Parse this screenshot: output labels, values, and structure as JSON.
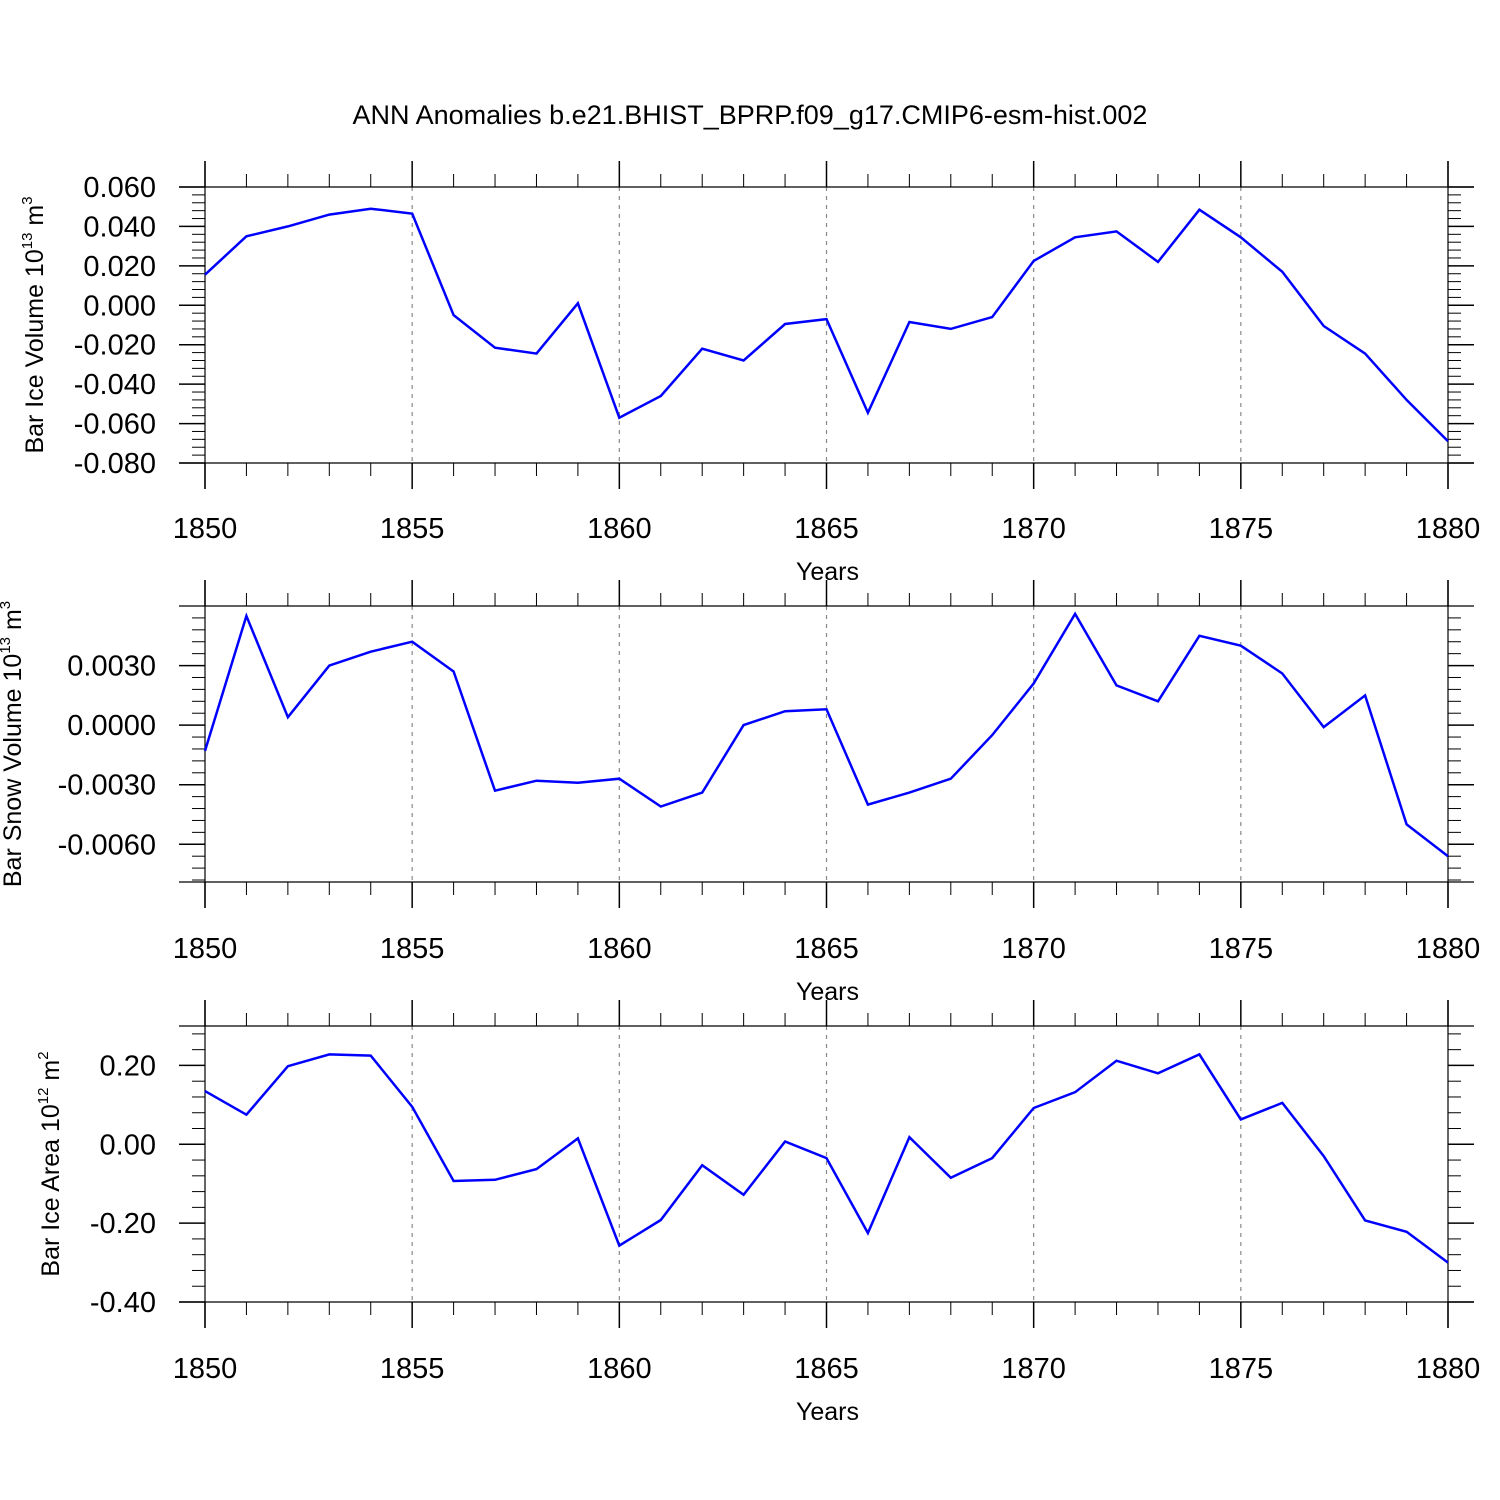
{
  "title": "ANN Anomalies b.e21.BHIST_BPRP.f09_g17.CMIP6-esm-hist.002",
  "line_color": "#0000ff",
  "chart_data": [
    {
      "type": "line",
      "ylabel_main": "Bar Ice Volume 10",
      "ylabel_exp": "13",
      "ylabel_unit": "m",
      "ylabel_unit_exp": "3",
      "xlabel": "Years",
      "xlim": [
        1850,
        1880
      ],
      "ylim": [
        -0.08,
        0.06
      ],
      "yticks": [
        0.06,
        0.04,
        0.02,
        0.0,
        -0.02,
        -0.04,
        -0.06,
        -0.08
      ],
      "ytick_labels": [
        "0.060",
        "0.040",
        "0.020",
        "0.000",
        "-0.020",
        "-0.040",
        "-0.060",
        "-0.080"
      ],
      "xticks": [
        1850,
        1855,
        1860,
        1865,
        1870,
        1875,
        1880
      ],
      "xtick_labels": [
        "1850",
        "1855",
        "1860",
        "1865",
        "1870",
        "1875",
        "1880"
      ],
      "grid": "vertical dashed at major x ticks",
      "x": [
        1850,
        1851,
        1852,
        1853,
        1854,
        1855,
        1856,
        1857,
        1858,
        1859,
        1860,
        1861,
        1862,
        1863,
        1864,
        1865,
        1866,
        1867,
        1868,
        1869,
        1870,
        1871,
        1872,
        1873,
        1874,
        1875,
        1876,
        1877,
        1878,
        1879,
        1880
      ],
      "values": [
        0.0155,
        0.035,
        0.04,
        0.046,
        0.049,
        0.0465,
        -0.005,
        -0.0215,
        -0.0245,
        0.001,
        -0.057,
        -0.046,
        -0.022,
        -0.028,
        -0.0095,
        -0.007,
        -0.0545,
        -0.0085,
        -0.012,
        -0.006,
        0.0225,
        0.0345,
        0.0375,
        0.022,
        0.0485,
        0.0345,
        0.017,
        -0.0105,
        -0.0245,
        -0.048,
        -0.069
      ]
    },
    {
      "type": "line",
      "ylabel_main": "Bar Snow Volume 10",
      "ylabel_exp": "13",
      "ylabel_unit": "m",
      "ylabel_unit_exp": "3",
      "xlabel": "Years",
      "xlim": [
        1850,
        1880
      ],
      "ylim": [
        -0.0079,
        0.006
      ],
      "yticks": [
        0.003,
        0.0,
        -0.003,
        -0.006
      ],
      "ytick_labels": [
        "0.0030",
        "0.0000",
        "-0.0030",
        "-0.0060"
      ],
      "xticks": [
        1850,
        1855,
        1860,
        1865,
        1870,
        1875,
        1880
      ],
      "xtick_labels": [
        "1850",
        "1855",
        "1860",
        "1865",
        "1870",
        "1875",
        "1880"
      ],
      "grid": "vertical dashed at major x ticks",
      "x": [
        1850,
        1851,
        1852,
        1853,
        1854,
        1855,
        1856,
        1857,
        1858,
        1859,
        1860,
        1861,
        1862,
        1863,
        1864,
        1865,
        1866,
        1867,
        1868,
        1869,
        1870,
        1871,
        1872,
        1873,
        1874,
        1875,
        1876,
        1877,
        1878,
        1879,
        1880
      ],
      "values": [
        -0.0013,
        0.0055,
        0.0004,
        0.003,
        0.0037,
        0.0042,
        0.0027,
        -0.0033,
        -0.0028,
        -0.0029,
        -0.0027,
        -0.0041,
        -0.0034,
        0.0,
        0.0007,
        0.0008,
        -0.004,
        -0.0034,
        -0.0027,
        -0.0005,
        0.0021,
        0.0056,
        0.002,
        0.0012,
        0.0045,
        0.004,
        0.0026,
        -0.0001,
        0.0015,
        -0.005,
        -0.0066
      ]
    },
    {
      "type": "line",
      "ylabel_main": "Bar Ice Area 10",
      "ylabel_exp": "12",
      "ylabel_unit": "m",
      "ylabel_unit_exp": "2",
      "xlabel": "Years",
      "xlim": [
        1850,
        1880
      ],
      "ylim": [
        -0.4,
        0.3
      ],
      "yticks": [
        0.2,
        0.0,
        -0.2,
        -0.4
      ],
      "ytick_labels": [
        "0.20",
        "0.00",
        "-0.20",
        "-0.40"
      ],
      "xticks": [
        1850,
        1855,
        1860,
        1865,
        1870,
        1875,
        1880
      ],
      "xtick_labels": [
        "1850",
        "1855",
        "1860",
        "1865",
        "1870",
        "1875",
        "1880"
      ],
      "grid": "vertical dashed at major x ticks",
      "x": [
        1850,
        1851,
        1852,
        1853,
        1854,
        1855,
        1856,
        1857,
        1858,
        1859,
        1860,
        1861,
        1862,
        1863,
        1864,
        1865,
        1866,
        1867,
        1868,
        1869,
        1870,
        1871,
        1872,
        1873,
        1874,
        1875,
        1876,
        1877,
        1878,
        1879,
        1880
      ],
      "values": [
        0.135,
        0.075,
        0.198,
        0.228,
        0.225,
        0.095,
        -0.093,
        -0.09,
        -0.063,
        0.015,
        -0.257,
        -0.192,
        -0.053,
        -0.128,
        0.007,
        -0.035,
        -0.225,
        0.018,
        -0.085,
        -0.035,
        0.092,
        0.132,
        0.212,
        0.18,
        0.228,
        0.063,
        0.105,
        -0.03,
        -0.193,
        -0.222,
        -0.3
      ]
    }
  ]
}
